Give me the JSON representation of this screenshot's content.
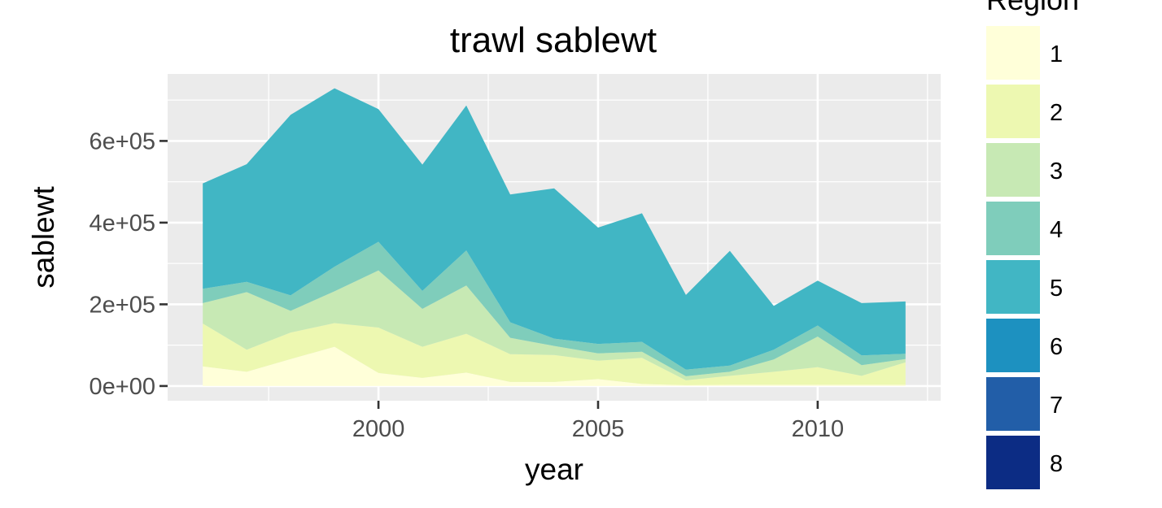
{
  "chart_data": {
    "type": "area",
    "stacked": true,
    "title": "trawl sablewt",
    "xlabel": "year",
    "ylabel": "sablewt",
    "xlim": [
      1995.2,
      2012.8
    ],
    "ylim": [
      -36000,
      764000
    ],
    "x_ticks": [
      2000,
      2005,
      2010
    ],
    "x_tick_labels": [
      "2000",
      "2005",
      "2010"
    ],
    "y_ticks": [
      0,
      200000,
      400000,
      600000
    ],
    "y_tick_labels": [
      "0e+00",
      "2e+05",
      "4e+05",
      "6e+05"
    ],
    "grid": true,
    "background": "#EBEBEB",
    "legend": {
      "title": "Region",
      "position": "right",
      "entries": [
        "1",
        "2",
        "3",
        "4",
        "5",
        "6",
        "7",
        "8"
      ],
      "colors": [
        "#FFFFD9",
        "#EDF8B1",
        "#C7E9B4",
        "#7FCDBB",
        "#41B6C4",
        "#1D91C0",
        "#225EA8",
        "#0C2C84"
      ]
    },
    "x": [
      1996,
      1997,
      1998,
      1999,
      2000,
      2001,
      2002,
      2003,
      2004,
      2005,
      2006,
      2007,
      2008,
      2009,
      2010,
      2011,
      2012
    ],
    "series": [
      {
        "name": "1",
        "color": "#FFFFD9",
        "values": [
          48000,
          35000,
          66000,
          96000,
          32000,
          20000,
          33000,
          10000,
          10000,
          17000,
          5000,
          2000,
          3000,
          3000,
          3000,
          3000,
          3000
        ]
      },
      {
        "name": "2",
        "color": "#EDF8B1",
        "values": [
          105000,
          54000,
          65000,
          58000,
          111000,
          76000,
          95000,
          68000,
          66000,
          45000,
          64000,
          12000,
          22000,
          32000,
          43000,
          22000,
          55000
        ]
      },
      {
        "name": "3",
        "color": "#C7E9B4",
        "values": [
          50000,
          141000,
          53000,
          78000,
          140000,
          93000,
          118000,
          40000,
          22000,
          18000,
          15000,
          10000,
          10000,
          30000,
          75000,
          26000,
          8000
        ]
      },
      {
        "name": "4",
        "color": "#7FCDBB",
        "values": [
          35000,
          25000,
          38000,
          60000,
          70000,
          44000,
          86000,
          38000,
          18000,
          23000,
          24000,
          16000,
          15000,
          24000,
          27000,
          24000,
          13000
        ]
      },
      {
        "name": "5",
        "color": "#41B6C4",
        "values": [
          258000,
          288000,
          442000,
          437000,
          325000,
          309000,
          355000,
          313000,
          368000,
          285000,
          315000,
          183000,
          281000,
          107000,
          110000,
          128000,
          128000
        ]
      },
      {
        "name": "6",
        "color": "#1D91C0",
        "values": [
          0,
          0,
          0,
          0,
          0,
          0,
          0,
          0,
          0,
          0,
          0,
          0,
          0,
          0,
          0,
          0,
          0
        ]
      },
      {
        "name": "7",
        "color": "#225EA8",
        "values": [
          0,
          0,
          0,
          0,
          0,
          0,
          0,
          0,
          0,
          0,
          0,
          0,
          0,
          0,
          0,
          0,
          0
        ]
      },
      {
        "name": "8",
        "color": "#0C2C84",
        "values": [
          0,
          0,
          0,
          0,
          0,
          0,
          0,
          0,
          0,
          0,
          0,
          0,
          0,
          0,
          0,
          0,
          0
        ]
      }
    ]
  }
}
